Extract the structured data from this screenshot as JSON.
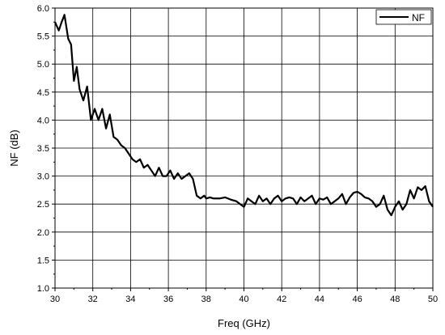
{
  "chart_data": {
    "type": "line",
    "title": "",
    "xlabel": "Freq (GHz)",
    "ylabel": "NF (dB)",
    "xlim": [
      30,
      50
    ],
    "ylim": [
      1.0,
      6.0
    ],
    "x_ticks": [
      "30",
      "32",
      "34",
      "36",
      "38",
      "40",
      "42",
      "44",
      "46",
      "48",
      "50"
    ],
    "y_ticks": [
      "1.0",
      "1.5",
      "2.0",
      "2.5",
      "3.0",
      "3.5",
      "4.0",
      "4.5",
      "5.0",
      "5.5",
      "6.0"
    ],
    "grid": true,
    "legend_position": "top-right",
    "series": [
      {
        "name": "NF",
        "color": "#000000",
        "x": [
          30.0,
          30.2,
          30.35,
          30.5,
          30.7,
          30.85,
          31.0,
          31.15,
          31.3,
          31.5,
          31.7,
          31.9,
          32.1,
          32.3,
          32.5,
          32.7,
          32.9,
          33.1,
          33.3,
          33.5,
          33.7,
          33.9,
          34.1,
          34.3,
          34.5,
          34.7,
          34.9,
          35.1,
          35.3,
          35.5,
          35.7,
          35.9,
          36.1,
          36.3,
          36.5,
          36.7,
          36.9,
          37.1,
          37.3,
          37.5,
          37.7,
          37.9,
          38.0,
          38.2,
          38.4,
          38.7,
          39.0,
          39.3,
          39.6,
          39.8,
          40.0,
          40.2,
          40.4,
          40.6,
          40.8,
          41.0,
          41.2,
          41.4,
          41.6,
          41.8,
          42.0,
          42.2,
          42.4,
          42.6,
          42.8,
          43.0,
          43.2,
          43.4,
          43.6,
          43.8,
          44.0,
          44.2,
          44.4,
          44.6,
          44.8,
          45.0,
          45.2,
          45.4,
          45.6,
          45.8,
          46.0,
          46.2,
          46.4,
          46.6,
          46.8,
          47.0,
          47.2,
          47.4,
          47.6,
          47.8,
          48.0,
          48.2,
          48.4,
          48.6,
          48.8,
          49.0,
          49.2,
          49.4,
          49.6,
          49.8,
          50.0
        ],
        "y": [
          5.75,
          5.6,
          5.75,
          5.88,
          5.45,
          5.35,
          4.7,
          4.95,
          4.55,
          4.35,
          4.6,
          4.0,
          4.2,
          4.0,
          4.2,
          3.85,
          4.1,
          3.7,
          3.65,
          3.55,
          3.5,
          3.4,
          3.3,
          3.25,
          3.3,
          3.15,
          3.2,
          3.1,
          3.0,
          3.15,
          3.0,
          3.0,
          3.1,
          2.95,
          3.05,
          2.95,
          3.0,
          3.05,
          2.95,
          2.65,
          2.6,
          2.65,
          2.6,
          2.62,
          2.6,
          2.6,
          2.62,
          2.58,
          2.55,
          2.5,
          2.45,
          2.6,
          2.55,
          2.5,
          2.65,
          2.55,
          2.6,
          2.5,
          2.6,
          2.65,
          2.55,
          2.6,
          2.62,
          2.6,
          2.5,
          2.62,
          2.55,
          2.6,
          2.65,
          2.5,
          2.6,
          2.58,
          2.62,
          2.5,
          2.55,
          2.6,
          2.68,
          2.5,
          2.62,
          2.7,
          2.72,
          2.68,
          2.62,
          2.6,
          2.55,
          2.45,
          2.5,
          2.65,
          2.4,
          2.3,
          2.45,
          2.55,
          2.4,
          2.5,
          2.75,
          2.6,
          2.8,
          2.75,
          2.82,
          2.55,
          2.45
        ]
      }
    ]
  }
}
